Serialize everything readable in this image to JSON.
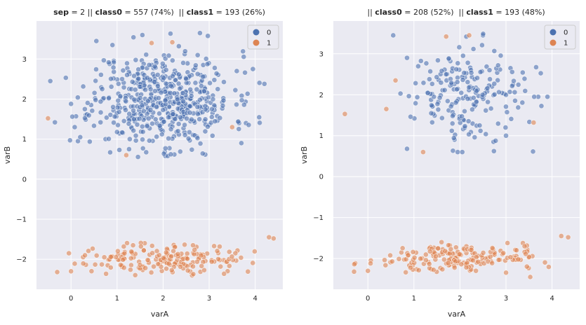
{
  "chart_data": [
    {
      "type": "scatter",
      "title_parts": [
        {
          "text": "sep",
          "bold": true
        },
        {
          "text": " = 2 || ",
          "bold": false
        },
        {
          "text": "class0",
          "bold": true
        },
        {
          "text": " = 557 (74%)  || ",
          "bold": false
        },
        {
          "text": "class1",
          "bold": true
        },
        {
          "text": " = 193 (26%)",
          "bold": false
        }
      ],
      "xlabel": "varA",
      "ylabel": "varB",
      "xlim": [
        -0.75,
        4.6
      ],
      "ylim": [
        -2.75,
        3.95
      ],
      "xticks": [
        0,
        1,
        2,
        3,
        4
      ],
      "yticks": [
        -2,
        -1,
        0,
        1,
        2,
        3
      ],
      "grid": true,
      "legend_position": "top-right",
      "series": [
        {
          "name": "0",
          "color": "#4c72b0",
          "size": 557,
          "cluster": {
            "cx": 2.0,
            "cy": 2.0,
            "sx": 0.75,
            "sy": 0.6,
            "xmin": -0.5,
            "xmax": 4.3,
            "ymin": 0.55,
            "ymax": 3.7
          },
          "points": [
            [
              -0.45,
              2.45
            ],
            [
              -0.35,
              1.42
            ],
            [
              0.0,
              1.88
            ],
            [
              0.08,
              1.3
            ],
            [
              0.15,
              0.95
            ],
            [
              0.2,
              1.05
            ],
            [
              0.3,
              1.75
            ],
            [
              0.55,
              3.45
            ],
            [
              0.9,
              3.35
            ],
            [
              1.55,
              3.6
            ],
            [
              2.05,
              0.58
            ],
            [
              2.1,
              0.58
            ],
            [
              2.8,
              3.65
            ],
            [
              3.6,
              2.7
            ],
            [
              3.95,
              2.75
            ],
            [
              4.2,
              2.38
            ],
            [
              3.7,
              0.9
            ],
            [
              3.8,
              1.4
            ],
            [
              0.85,
              0.67
            ],
            [
              0.75,
              1.0
            ]
          ]
        },
        {
          "name": "1",
          "color": "#dd8452",
          "size": 193,
          "cluster": {
            "cx": 2.0,
            "cy": -2.0,
            "sx": 0.85,
            "sy": 0.18,
            "xmin": -0.3,
            "xmax": 4.4,
            "ymin": -2.45,
            "ymax": -1.45
          },
          "points": [
            [
              -0.3,
              -2.32
            ],
            [
              0.0,
              -2.3
            ],
            [
              4.3,
              -1.45
            ],
            [
              4.4,
              -1.48
            ],
            [
              -0.5,
              1.52
            ],
            [
              1.75,
              3.4
            ],
            [
              2.2,
              3.42
            ],
            [
              1.2,
              0.6
            ],
            [
              1.6,
              -1.6
            ],
            [
              3.5,
              1.3
            ]
          ]
        }
      ]
    },
    {
      "type": "scatter",
      "title_parts": [
        {
          "text": "|| ",
          "bold": false
        },
        {
          "text": "class0",
          "bold": true
        },
        {
          "text": " = 208 (52%)  || ",
          "bold": false
        },
        {
          "text": "class1",
          "bold": true
        },
        {
          "text": " = 193 (48%)",
          "bold": false
        }
      ],
      "xlabel": "varA",
      "ylabel": "varB",
      "xlim": [
        -0.75,
        4.6
      ],
      "ylim": [
        -2.75,
        3.8
      ],
      "xticks": [
        0,
        1,
        2,
        3,
        4
      ],
      "yticks": [
        -2,
        -1,
        0,
        1,
        2,
        3
      ],
      "grid": true,
      "legend_position": "top-right",
      "series": [
        {
          "name": "0",
          "color": "#4c72b0",
          "size": 208,
          "cluster": {
            "cx": 2.05,
            "cy": 2.05,
            "sx": 0.65,
            "sy": 0.55,
            "xmin": 0.55,
            "xmax": 3.9,
            "ymin": 0.55,
            "ymax": 3.5
          },
          "points": [
            [
              0.55,
              3.45
            ],
            [
              0.85,
              2.9
            ],
            [
              2.5,
              3.45
            ],
            [
              3.9,
              1.95
            ],
            [
              0.85,
              0.68
            ],
            [
              1.95,
              0.6
            ],
            [
              2.05,
              0.6
            ],
            [
              3.0,
              1.0
            ],
            [
              3.7,
              1.95
            ]
          ]
        },
        {
          "name": "1",
          "color": "#dd8452",
          "size": 193,
          "cluster": {
            "cx": 2.0,
            "cy": -2.0,
            "sx": 0.85,
            "sy": 0.18,
            "xmin": -0.3,
            "xmax": 4.4,
            "ymin": -2.45,
            "ymax": -1.45
          },
          "points": [
            [
              -0.3,
              -2.32
            ],
            [
              0.0,
              -2.3
            ],
            [
              4.2,
              -1.45
            ],
            [
              4.35,
              -1.48
            ],
            [
              -0.5,
              1.53
            ],
            [
              1.7,
              3.42
            ],
            [
              2.2,
              3.45
            ],
            [
              1.2,
              0.6
            ],
            [
              1.6,
              -1.6
            ],
            [
              3.6,
              1.32
            ],
            [
              0.6,
              2.35
            ],
            [
              0.4,
              1.65
            ]
          ]
        }
      ]
    }
  ],
  "legend": {
    "title": "",
    "labels": [
      "0",
      "1"
    ]
  }
}
